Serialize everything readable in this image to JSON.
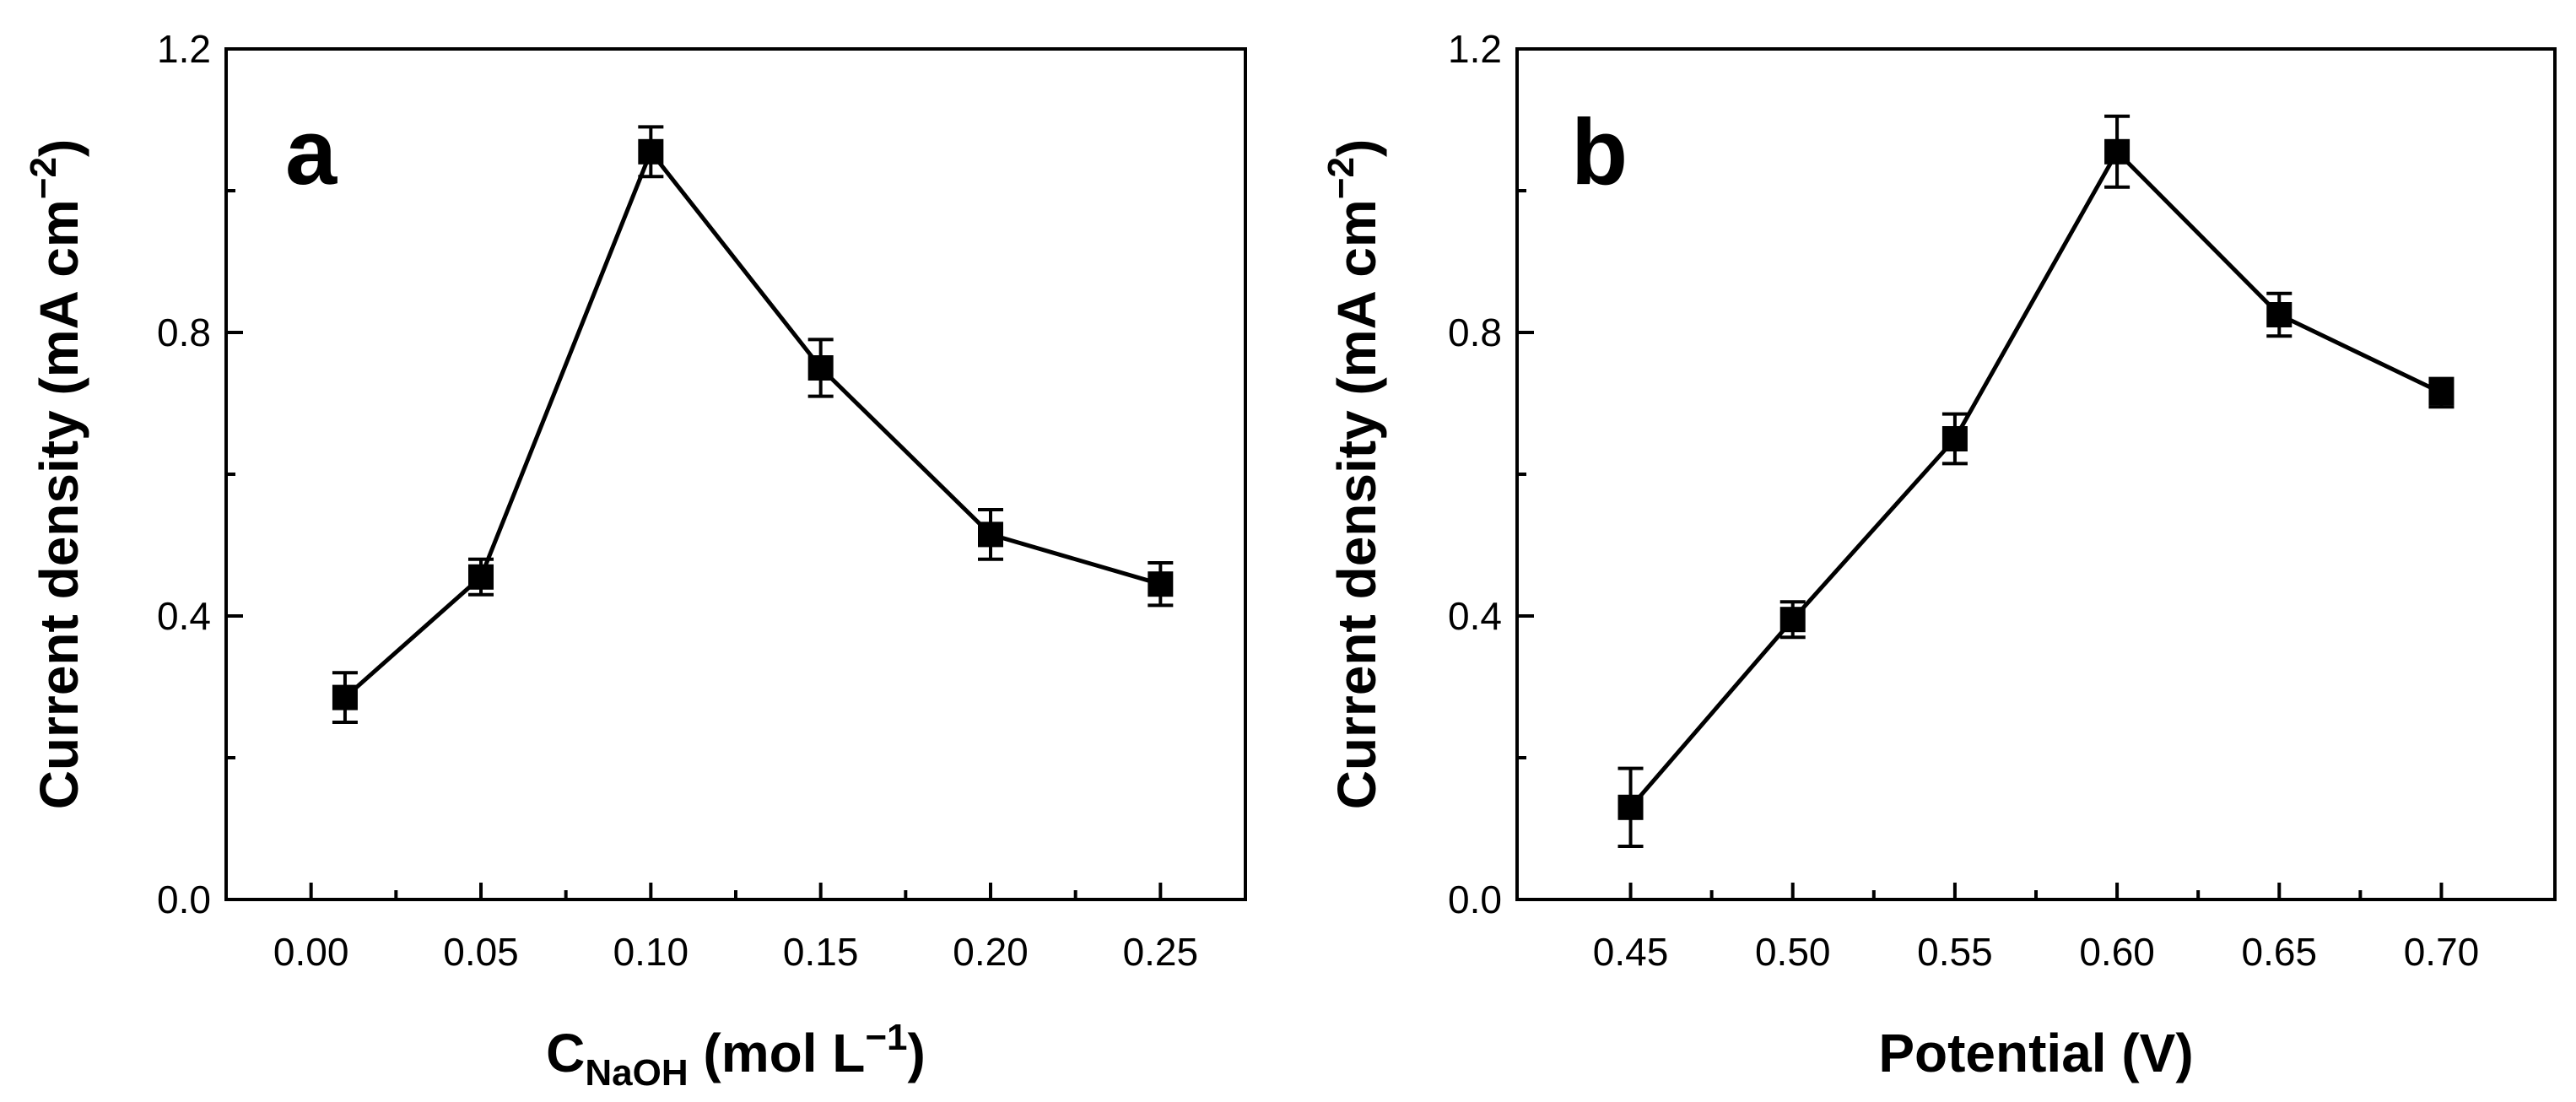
{
  "chart_data": [
    {
      "type": "line",
      "panel_label": "a",
      "title": "",
      "xlabel": {
        "main": "C",
        "sub": "NaOH",
        "rest": " (mol L",
        "sup": "−1",
        "close": ")"
      },
      "ylabel": {
        "main": "Current density (mA cm",
        "sup": "−2",
        "close": ")"
      },
      "xlim": [
        -0.025,
        0.275
      ],
      "ylim": [
        0.0,
        1.2
      ],
      "xticks": [
        0.0,
        0.05,
        0.1,
        0.15,
        0.2,
        0.25
      ],
      "xtick_labels": [
        "0.00",
        "0.05",
        "0.10",
        "0.15",
        "0.20",
        "0.25"
      ],
      "yticks": [
        0.0,
        0.4,
        0.8,
        1.2
      ],
      "ytick_labels": [
        "0.0",
        "0.4",
        "0.8",
        "1.2"
      ],
      "marker": "square",
      "color": "#000000",
      "series": [
        {
          "name": "Current density",
          "x": [
            0.01,
            0.05,
            0.1,
            0.15,
            0.2,
            0.25
          ],
          "y": [
            0.285,
            0.455,
            1.055,
            0.75,
            0.515,
            0.445
          ],
          "yerr": [
            0.035,
            0.025,
            0.035,
            0.04,
            0.035,
            0.03
          ]
        }
      ]
    },
    {
      "type": "line",
      "panel_label": "b",
      "title": "",
      "xlabel": {
        "main": "Potential (V)",
        "sub": "",
        "rest": "",
        "sup": "",
        "close": ""
      },
      "ylabel": {
        "main": "Current density (mA cm",
        "sup": "−2",
        "close": ")"
      },
      "xlim": [
        0.415,
        0.735
      ],
      "ylim": [
        0.0,
        1.2
      ],
      "xticks": [
        0.45,
        0.5,
        0.55,
        0.6,
        0.65,
        0.7
      ],
      "xtick_labels": [
        "0.45",
        "0.50",
        "0.55",
        "0.60",
        "0.65",
        "0.70"
      ],
      "yticks": [
        0.0,
        0.4,
        0.8,
        1.2
      ],
      "ytick_labels": [
        "0.0",
        "0.4",
        "0.8",
        "1.2"
      ],
      "marker": "square",
      "color": "#000000",
      "series": [
        {
          "name": "Current density",
          "x": [
            0.45,
            0.5,
            0.55,
            0.6,
            0.65,
            0.7
          ],
          "y": [
            0.13,
            0.395,
            0.65,
            1.055,
            0.825,
            0.715
          ],
          "yerr": [
            0.055,
            0.025,
            0.035,
            0.05,
            0.03,
            0.02
          ]
        }
      ]
    }
  ]
}
